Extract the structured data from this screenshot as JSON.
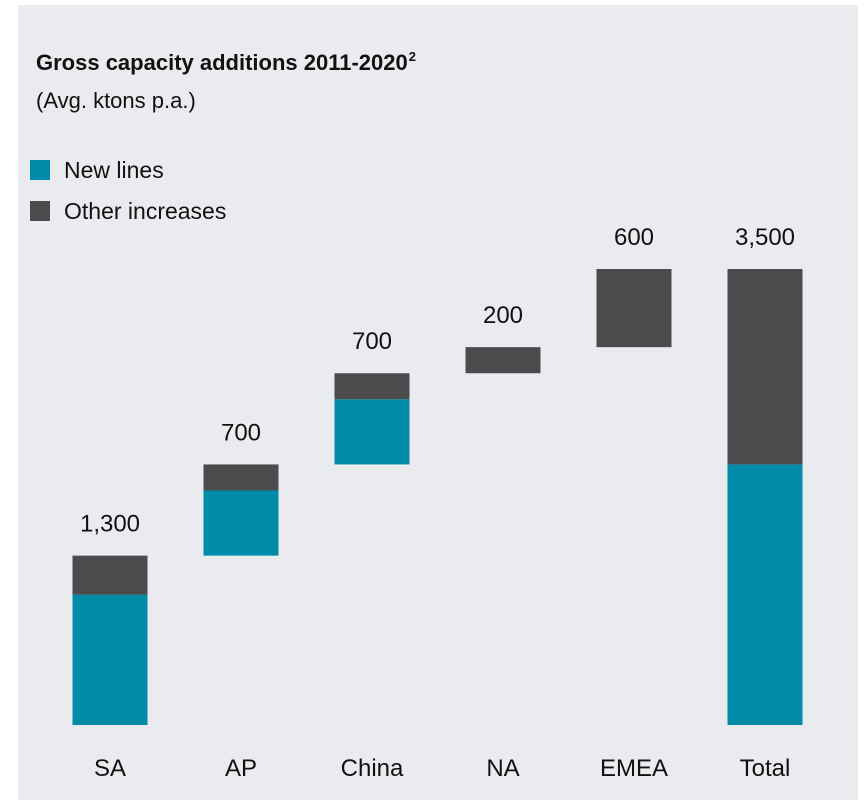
{
  "colors": {
    "panel_background": "#e9ebee",
    "new_lines": "#008ca8",
    "other_increases": "#4a4b4d"
  },
  "header": {
    "title": "Gross capacity additions 2011-2020",
    "title_superscript": "2",
    "subtitle": "(Avg. ktons p.a.)"
  },
  "chart_data": {
    "type": "bar",
    "subtype": "waterfall",
    "title": "Gross capacity additions 2011-2020",
    "title_superscript": "2",
    "subtitle": "(Avg. ktons p.a.)",
    "categories": [
      "SA",
      "AP",
      "China",
      "NA",
      "EMEA",
      "Total"
    ],
    "totals": [
      1300,
      700,
      700,
      200,
      600,
      3500
    ],
    "total_labels": [
      "1,300",
      "700",
      "700",
      "200",
      "600",
      "3,500"
    ],
    "series": [
      {
        "name": "New lines",
        "color": "#008ca8",
        "values": [
          1000,
          500,
          500,
          0,
          0,
          2000
        ]
      },
      {
        "name": "Other increases",
        "color": "#4a4b4d",
        "values": [
          300,
          200,
          200,
          200,
          600,
          1500
        ]
      }
    ],
    "ylim": [
      0,
      3500
    ],
    "grid": false,
    "legend_position": "top-left",
    "xlabel": "",
    "ylabel": ""
  }
}
